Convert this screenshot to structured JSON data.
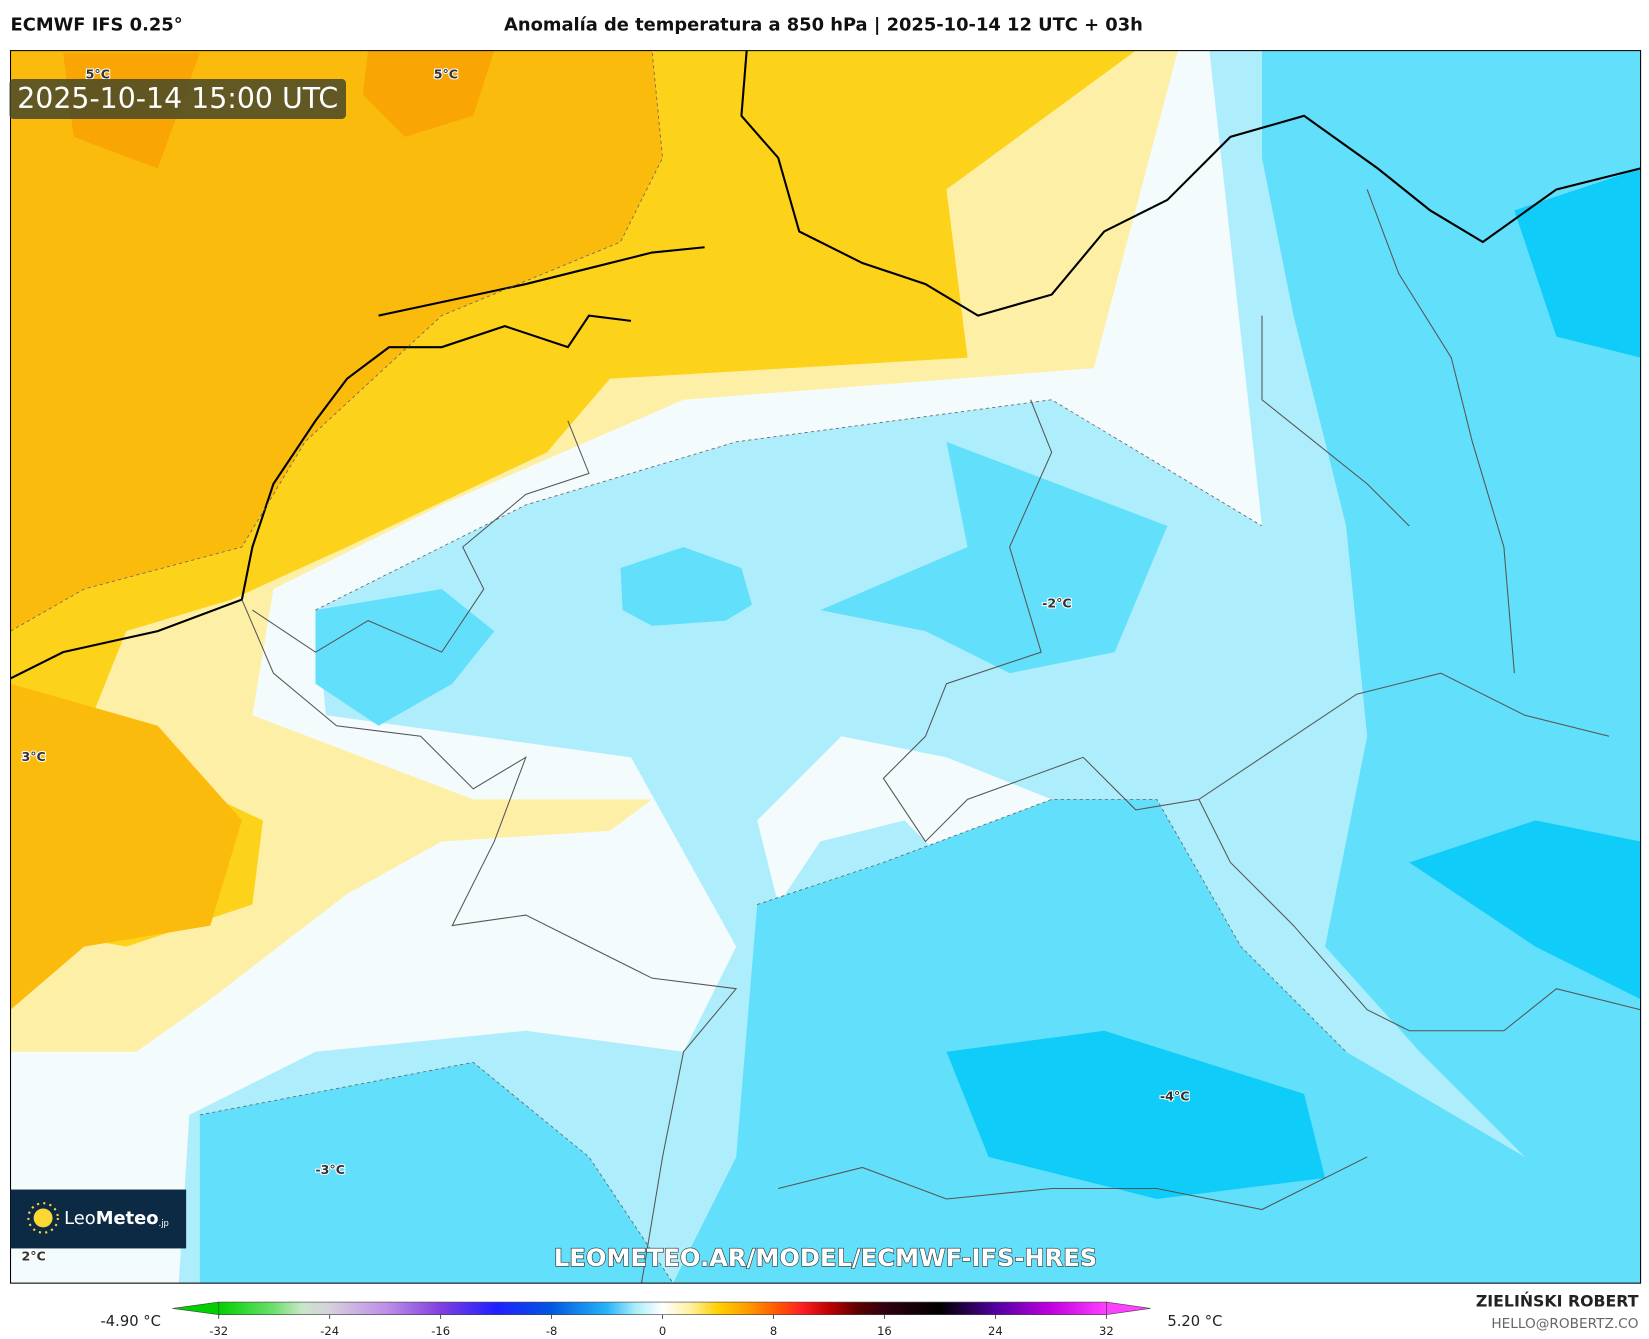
{
  "header": {
    "model": "ECMWF IFS 0.25°",
    "title": "Anomalía de temperatura a 850 hPa | 2025-10-14 12 UTC + 03h"
  },
  "map": {
    "valid_time": "2025-10-14 15:00 UTC",
    "contour_labels": [
      "5°C",
      "5°C",
      "3°C",
      "2°C",
      "-2°C",
      "-4°C",
      "-3°C"
    ],
    "watermark": "LEOMETEO.AR/MODEL/ECMWF-IFS-HRES",
    "logo": [
      "Leo",
      "Meteo",
      ".jp"
    ]
  },
  "colorbar": {
    "min_label": "-4.90 °C",
    "max_label": "5.20 °C",
    "lim": [
      -32,
      32
    ],
    "ticks": [
      -32,
      -24,
      -16,
      -8,
      0,
      8,
      16,
      24,
      32
    ],
    "stops": [
      [
        -32,
        "#00d000"
      ],
      [
        -28,
        "#6ee06e"
      ],
      [
        -26,
        "#c8e6c8"
      ],
      [
        -24,
        "#d6d0dc"
      ],
      [
        -20,
        "#c090e8"
      ],
      [
        -16,
        "#8040e0"
      ],
      [
        -12,
        "#2020ff"
      ],
      [
        -8,
        "#0058e0"
      ],
      [
        -4,
        "#28b4f8"
      ],
      [
        -2,
        "#a8ecfc"
      ],
      [
        0,
        "#ffffff"
      ],
      [
        2,
        "#fff0a0"
      ],
      [
        4,
        "#ffd000"
      ],
      [
        6,
        "#ffa000"
      ],
      [
        8,
        "#ff6000"
      ],
      [
        10,
        "#ff2020"
      ],
      [
        12,
        "#c00000"
      ],
      [
        14,
        "#600000"
      ],
      [
        16,
        "#300010"
      ],
      [
        20,
        "#000000"
      ],
      [
        24,
        "#5000a0"
      ],
      [
        28,
        "#c000e0"
      ],
      [
        32,
        "#ff40ff"
      ]
    ]
  },
  "credits": {
    "author": "ZIELIŃSKI ROBERT",
    "email": "HELLO@ROBERTZ.CO"
  }
}
